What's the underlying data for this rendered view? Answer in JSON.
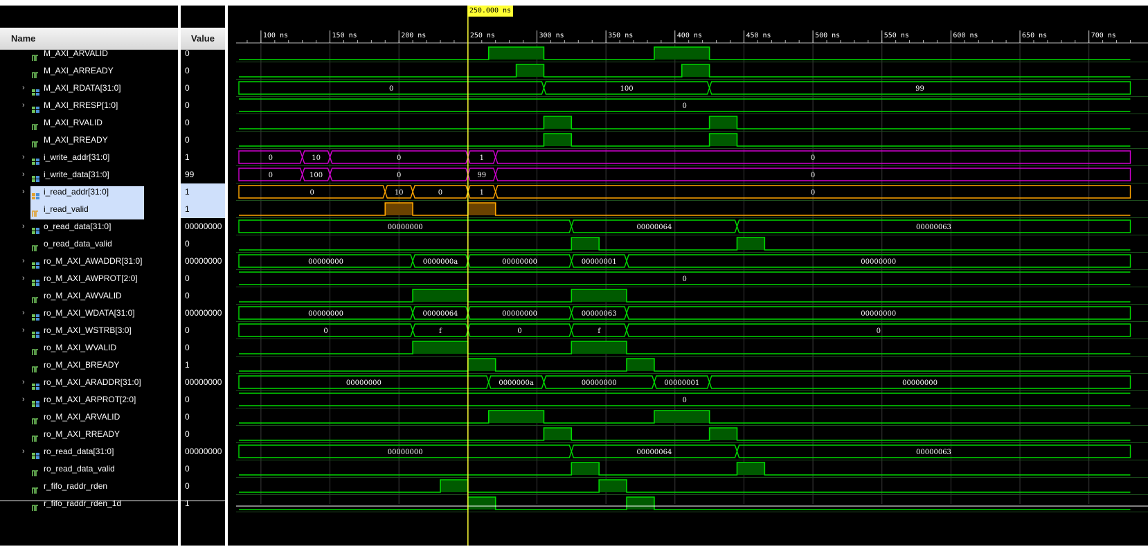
{
  "columns": {
    "name_header": "Name",
    "value_header": "Value"
  },
  "cursor": {
    "label": "250.000 ns",
    "time_ns": 250
  },
  "time_axis": {
    "start_ns": 84,
    "end_ns": 730,
    "ticks": [
      {
        "t": 100,
        "label": "100 ns"
      },
      {
        "t": 150,
        "label": "150 ns"
      },
      {
        "t": 200,
        "label": "200 ns"
      },
      {
        "t": 250,
        "label": "250 ns"
      },
      {
        "t": 300,
        "label": "300 ns"
      },
      {
        "t": 350,
        "label": "350 ns"
      },
      {
        "t": 400,
        "label": "400 ns"
      },
      {
        "t": 450,
        "label": "450 ns"
      },
      {
        "t": 500,
        "label": "500 ns"
      },
      {
        "t": 550,
        "label": "550 ns"
      },
      {
        "t": 600,
        "label": "600 ns"
      },
      {
        "t": 650,
        "label": "650 ns"
      },
      {
        "t": 700,
        "label": "700 ns"
      }
    ]
  },
  "colors": {
    "green": "#00d800",
    "fill": "#005a00",
    "magenta": "#d000d0",
    "orange": "#ffa500",
    "orange_fill": "#6b4200",
    "cursor": "#ffff33",
    "grid": "#3a3a3a"
  },
  "signals": [
    {
      "name": "M_AXI_ARVALID",
      "value": "0",
      "kind": "bit",
      "icon": "bit-icon",
      "color": "green",
      "high": [
        [
          265,
          305
        ],
        [
          385,
          425
        ]
      ]
    },
    {
      "name": "M_AXI_ARREADY",
      "value": "0",
      "kind": "bit",
      "icon": "bit-icon",
      "color": "green",
      "high": [
        [
          285,
          305
        ],
        [
          405,
          425
        ]
      ]
    },
    {
      "name": "M_AXI_RDATA[31:0]",
      "value": "0",
      "kind": "bus",
      "icon": "bus-icon",
      "color": "green",
      "expandable": true,
      "segments": [
        [
          84,
          305,
          "0"
        ],
        [
          305,
          425,
          "100"
        ],
        [
          425,
          730,
          "99"
        ]
      ]
    },
    {
      "name": "M_AXI_RRESP[1:0]",
      "value": "0",
      "kind": "bus",
      "icon": "bus-icon",
      "color": "green",
      "expandable": true,
      "segments": [
        [
          84,
          730,
          "0"
        ]
      ]
    },
    {
      "name": "M_AXI_RVALID",
      "value": "0",
      "kind": "bit",
      "icon": "bit-icon",
      "color": "green",
      "high": [
        [
          305,
          325
        ],
        [
          425,
          445
        ]
      ]
    },
    {
      "name": "M_AXI_RREADY",
      "value": "0",
      "kind": "bit",
      "icon": "bit-icon",
      "color": "green",
      "high": [
        [
          305,
          325
        ],
        [
          425,
          445
        ]
      ]
    },
    {
      "name": "i_write_addr[31:0]",
      "value": "1",
      "kind": "bus",
      "icon": "bus-icon",
      "color": "magenta",
      "expandable": true,
      "segments": [
        [
          84,
          130,
          "0"
        ],
        [
          130,
          150,
          "10"
        ],
        [
          150,
          250,
          "0"
        ],
        [
          250,
          270,
          "1"
        ],
        [
          270,
          730,
          "0"
        ]
      ]
    },
    {
      "name": "i_write_data[31:0]",
      "value": "99",
      "kind": "bus",
      "icon": "bus-icon",
      "color": "magenta",
      "expandable": true,
      "segments": [
        [
          84,
          130,
          "0"
        ],
        [
          130,
          150,
          "100"
        ],
        [
          150,
          250,
          "0"
        ],
        [
          250,
          270,
          "99"
        ],
        [
          270,
          730,
          "0"
        ]
      ]
    },
    {
      "name": "i_read_addr[31:0]",
      "value": "1",
      "kind": "bus",
      "icon": "bus-icon",
      "color": "orange",
      "expandable": true,
      "selected": true,
      "segments": [
        [
          84,
          190,
          "0"
        ],
        [
          190,
          210,
          "10"
        ],
        [
          210,
          250,
          "0"
        ],
        [
          250,
          270,
          "1"
        ],
        [
          270,
          730,
          "0"
        ]
      ]
    },
    {
      "name": "i_read_valid",
      "value": "1",
      "kind": "bit",
      "icon": "bit-icon",
      "color": "orange",
      "selected": true,
      "high": [
        [
          190,
          210
        ],
        [
          250,
          270
        ]
      ]
    },
    {
      "name": "o_read_data[31:0]",
      "value": "00000000",
      "kind": "bus",
      "icon": "bus-icon",
      "color": "green",
      "expandable": true,
      "segments": [
        [
          84,
          325,
          "00000000"
        ],
        [
          325,
          445,
          "00000064"
        ],
        [
          445,
          730,
          "00000063"
        ]
      ]
    },
    {
      "name": "o_read_data_valid",
      "value": "0",
      "kind": "bit",
      "icon": "bit-icon",
      "color": "green",
      "high": [
        [
          325,
          345
        ],
        [
          445,
          465
        ]
      ]
    },
    {
      "name": "ro_M_AXI_AWADDR[31:0]",
      "value": "00000000",
      "kind": "bus",
      "icon": "bus-icon",
      "color": "green",
      "expandable": true,
      "segments": [
        [
          84,
          210,
          "00000000"
        ],
        [
          210,
          250,
          "0000000a"
        ],
        [
          250,
          325,
          "00000000"
        ],
        [
          325,
          365,
          "00000001"
        ],
        [
          365,
          730,
          "00000000"
        ]
      ]
    },
    {
      "name": "ro_M_AXI_AWPROT[2:0]",
      "value": "0",
      "kind": "bus",
      "icon": "bus-icon",
      "color": "green",
      "expandable": true,
      "segments": [
        [
          84,
          730,
          "0"
        ]
      ]
    },
    {
      "name": "ro_M_AXI_AWVALID",
      "value": "0",
      "kind": "bit",
      "icon": "bit-icon",
      "color": "green",
      "high": [
        [
          210,
          250
        ],
        [
          325,
          365
        ]
      ]
    },
    {
      "name": "ro_M_AXI_WDATA[31:0]",
      "value": "00000000",
      "kind": "bus",
      "icon": "bus-icon",
      "color": "green",
      "expandable": true,
      "segments": [
        [
          84,
          210,
          "00000000"
        ],
        [
          210,
          250,
          "00000064"
        ],
        [
          250,
          325,
          "00000000"
        ],
        [
          325,
          365,
          "00000063"
        ],
        [
          365,
          730,
          "00000000"
        ]
      ]
    },
    {
      "name": "ro_M_AXI_WSTRB[3:0]",
      "value": "0",
      "kind": "bus",
      "icon": "bus-icon",
      "color": "green",
      "expandable": true,
      "segments": [
        [
          84,
          210,
          "0"
        ],
        [
          210,
          250,
          "f"
        ],
        [
          250,
          325,
          "0"
        ],
        [
          325,
          365,
          "f"
        ],
        [
          365,
          730,
          "0"
        ]
      ]
    },
    {
      "name": "ro_M_AXI_WVALID",
      "value": "0",
      "kind": "bit",
      "icon": "bit-icon",
      "color": "green",
      "high": [
        [
          210,
          250
        ],
        [
          325,
          365
        ]
      ]
    },
    {
      "name": "ro_M_AXI_BREADY",
      "value": "1",
      "kind": "bit",
      "icon": "bit-icon",
      "color": "green",
      "high": [
        [
          250,
          270
        ],
        [
          365,
          385
        ]
      ]
    },
    {
      "name": "ro_M_AXI_ARADDR[31:0]",
      "value": "00000000",
      "kind": "bus",
      "icon": "bus-icon",
      "color": "green",
      "expandable": true,
      "segments": [
        [
          84,
          265,
          "00000000"
        ],
        [
          265,
          305,
          "0000000a"
        ],
        [
          305,
          385,
          "00000000"
        ],
        [
          385,
          425,
          "00000001"
        ],
        [
          425,
          730,
          "00000000"
        ]
      ]
    },
    {
      "name": "ro_M_AXI_ARPROT[2:0]",
      "value": "0",
      "kind": "bus",
      "icon": "bus-icon",
      "color": "green",
      "expandable": true,
      "segments": [
        [
          84,
          730,
          "0"
        ]
      ]
    },
    {
      "name": "ro_M_AXI_ARVALID",
      "value": "0",
      "kind": "bit",
      "icon": "bit-icon",
      "color": "green",
      "high": [
        [
          265,
          305
        ],
        [
          385,
          425
        ]
      ]
    },
    {
      "name": "ro_M_AXI_RREADY",
      "value": "0",
      "kind": "bit",
      "icon": "bit-icon",
      "color": "green",
      "high": [
        [
          305,
          325
        ],
        [
          425,
          445
        ]
      ]
    },
    {
      "name": "ro_read_data[31:0]",
      "value": "00000000",
      "kind": "bus",
      "icon": "bus-icon",
      "color": "green",
      "expandable": true,
      "segments": [
        [
          84,
          325,
          "00000000"
        ],
        [
          325,
          445,
          "00000064"
        ],
        [
          445,
          730,
          "00000063"
        ]
      ]
    },
    {
      "name": "ro_read_data_valid",
      "value": "0",
      "kind": "bit",
      "icon": "bit-icon",
      "color": "green",
      "high": [
        [
          325,
          345
        ],
        [
          445,
          465
        ]
      ]
    },
    {
      "name": "r_fifo_raddr_rden",
      "value": "0",
      "kind": "bit",
      "icon": "bit-icon",
      "color": "green",
      "high": [
        [
          230,
          250
        ],
        [
          345,
          365
        ]
      ]
    },
    {
      "name": "r_fifo_raddr_rden_1d",
      "value": "1",
      "kind": "bit",
      "icon": "bit-icon",
      "color": "green",
      "high": [
        [
          250,
          270
        ],
        [
          365,
          385
        ]
      ]
    }
  ]
}
